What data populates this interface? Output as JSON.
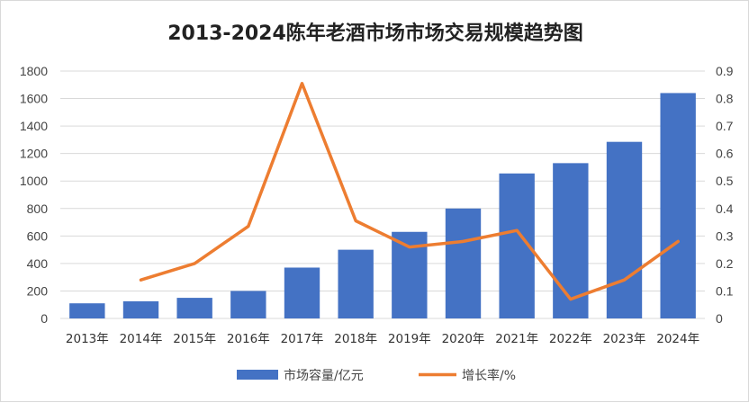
{
  "chart_data": {
    "type": "bar",
    "title": "2013-2024陈年老酒市场市场交易规模趋势图",
    "categories": [
      "2013年",
      "2014年",
      "2015年",
      "2016年",
      "2017年",
      "2018年",
      "2019年",
      "2020年",
      "2021年",
      "2022年",
      "2023年",
      "2024年"
    ],
    "series": [
      {
        "name": "市场容量/亿元",
        "type": "bar",
        "axis": "left",
        "color": "#4472C4",
        "values": [
          110,
          125,
          150,
          200,
          370,
          500,
          630,
          800,
          1055,
          1130,
          1285,
          1640
        ]
      },
      {
        "name": "增长率/%",
        "type": "line",
        "axis": "right",
        "color": "#ED7D31",
        "values": [
          null,
          0.14,
          0.2,
          0.335,
          0.855,
          0.355,
          0.26,
          0.28,
          0.32,
          0.07,
          0.14,
          0.28
        ]
      }
    ],
    "y_left": {
      "min": 0,
      "max": 1800,
      "ticks": [
        "0",
        "200",
        "400",
        "600",
        "800",
        "1000",
        "1200",
        "1400",
        "1600",
        "1800"
      ]
    },
    "y_right": {
      "min": 0,
      "max": 0.9,
      "ticks": [
        "0",
        "0.1",
        "0.2",
        "0.3",
        "0.4",
        "0.5",
        "0.6",
        "0.7",
        "0.8",
        "0.9"
      ]
    },
    "grid": true,
    "legend_position": "bottom"
  }
}
